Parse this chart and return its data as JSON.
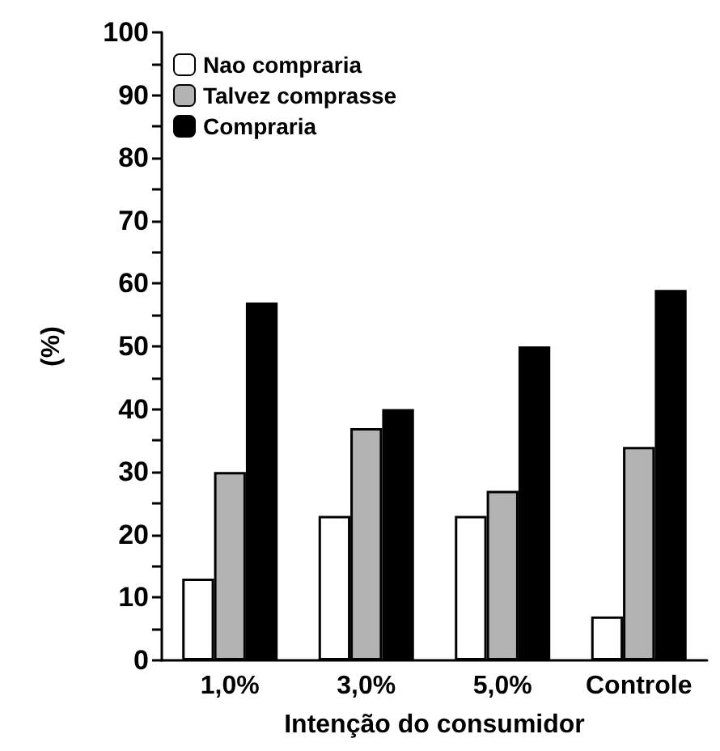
{
  "chart_data": {
    "type": "bar",
    "xlabel": "Intenção do consumidor",
    "ylabel": "(%)",
    "categories": [
      "1,0%",
      "3,0%",
      "5,0%",
      "Controle"
    ],
    "series": [
      {
        "name": "Nao compraria",
        "color": "#ffffff",
        "values": [
          13,
          23,
          23,
          7
        ]
      },
      {
        "name": "Talvez comprasse",
        "color": "#b3b3b3",
        "values": [
          30,
          37,
          27,
          34
        ]
      },
      {
        "name": "Compraria",
        "color": "#000000",
        "values": [
          57,
          40,
          50,
          59
        ]
      }
    ],
    "ylim": [
      0,
      100
    ],
    "yticks": [
      0,
      {
        "value": 5,
        "label": null
      },
      10,
      {
        "value": 15,
        "label": null
      },
      20,
      {
        "value": 25,
        "label": null
      },
      30,
      {
        "value": 35,
        "label": null
      },
      40,
      {
        "value": 45,
        "label": null
      },
      50,
      {
        "value": 55,
        "label": null
      },
      60,
      {
        "value": 65,
        "label": null
      },
      70,
      {
        "value": 75,
        "label": null
      },
      80,
      {
        "value": 85,
        "label": null
      },
      90,
      {
        "value": 95,
        "label": null
      },
      100
    ],
    "grid": false,
    "legend": "top left"
  }
}
